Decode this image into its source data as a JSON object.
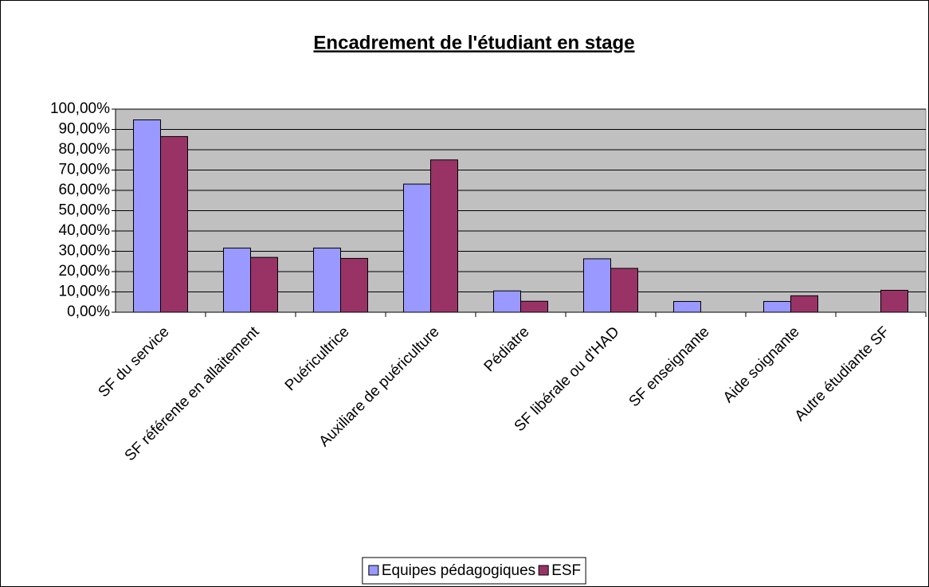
{
  "chart_data": {
    "type": "bar",
    "title": "Encadrement de l'étudiant en stage",
    "categories": [
      "SF du service",
      "SF référente en allaitement",
      "Puéricultrice",
      "Auxiliare de puériculture",
      "Pédiatre",
      "SF libérale ou d'HAD",
      "SF enseignante",
      "Aide soignante",
      "Autre étudiante SF"
    ],
    "series": [
      {
        "name": "Equipes pédagogiques",
        "color": "#9999ff",
        "values": [
          94.7,
          31.6,
          31.6,
          63.1,
          10.5,
          26.3,
          5.3,
          5.3,
          0
        ]
      },
      {
        "name": "ESF",
        "color": "#993366",
        "values": [
          86.5,
          27.0,
          26.5,
          75.0,
          5.4,
          21.6,
          0,
          8.1,
          10.8
        ]
      }
    ],
    "ylim": [
      0,
      100
    ],
    "yticks": [
      {
        "value": 0,
        "label": "0,00%"
      },
      {
        "value": 10,
        "label": "10,00%"
      },
      {
        "value": 20,
        "label": "20,00%"
      },
      {
        "value": 30,
        "label": "30,00%"
      },
      {
        "value": 40,
        "label": "40,00%"
      },
      {
        "value": 50,
        "label": "50,00%"
      },
      {
        "value": 60,
        "label": "60,00%"
      },
      {
        "value": 70,
        "label": "70,00%"
      },
      {
        "value": 80,
        "label": "80,00%"
      },
      {
        "value": 90,
        "label": "90,00%"
      },
      {
        "value": 100,
        "label": "100,00%"
      }
    ],
    "grid": true,
    "legend": "bottom"
  }
}
